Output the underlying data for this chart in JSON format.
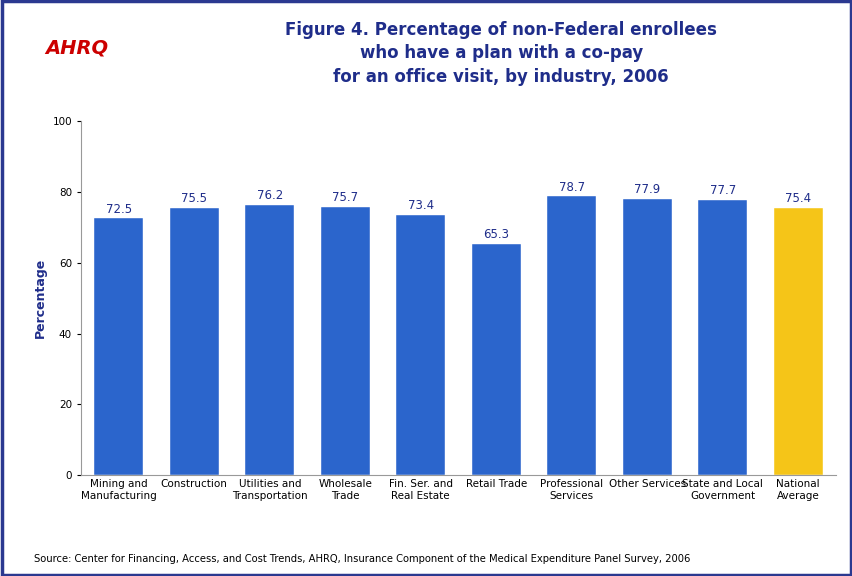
{
  "categories": [
    "Mining and\nManufacturing",
    "Construction",
    "Utilities and\nTransportation",
    "Wholesale\nTrade",
    "Fin. Ser. and\nReal Estate",
    "Retail Trade",
    "Professional\nServices",
    "Other Services",
    "State and Local\nGovernment",
    "National\nAverage"
  ],
  "values": [
    72.5,
    75.5,
    76.2,
    75.7,
    73.4,
    65.3,
    78.7,
    77.9,
    77.7,
    75.4
  ],
  "bar_colors": [
    "#2B65CC",
    "#2B65CC",
    "#2B65CC",
    "#2B65CC",
    "#2B65CC",
    "#2B65CC",
    "#2B65CC",
    "#2B65CC",
    "#2B65CC",
    "#F5C518"
  ],
  "title_line1": "Figure 4. Percentage of non-Federal enrollees",
  "title_line2": "who have a plan with a co-pay",
  "title_line3": "for an office visit, by industry, 2006",
  "ylabel": "Percentage",
  "ylim": [
    0,
    100
  ],
  "yticks": [
    0,
    20,
    40,
    60,
    80,
    100
  ],
  "title_color": "#1F2D8A",
  "ylabel_color": "#1F2D8A",
  "source_text": "Source: Center for Financing, Access, and Cost Trends, AHRQ, Insurance Component of the Medical Expenditure Panel Survey, 2006",
  "background_color": "#FFFFFF",
  "border_color": "#2B3990",
  "header_bg": "#FFFFFF",
  "logo_bg": "#1B75BB",
  "value_label_fontsize": 8.5,
  "axis_label_fontsize": 9,
  "tick_label_fontsize": 7.5,
  "title_fontsize": 12
}
